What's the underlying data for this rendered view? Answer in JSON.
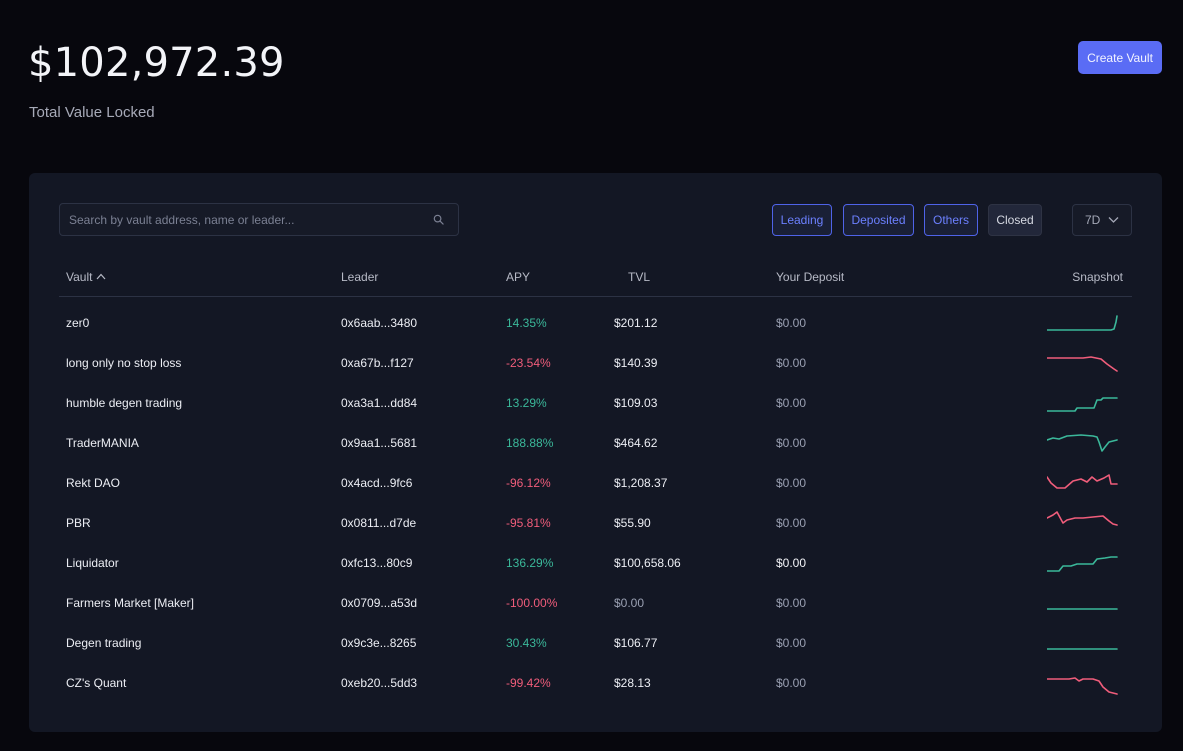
{
  "header": {
    "total_value": "$102,972.39",
    "total_label": "Total Value Locked",
    "create_button": "Create Vault"
  },
  "colors": {
    "accent": "#5a6cf5",
    "positive": "#3bb89a",
    "negative": "#f05d7b",
    "panel": "#131724",
    "background": "#07070d"
  },
  "search": {
    "placeholder": "Search by vault address, name or leader...",
    "value": "",
    "icon": "search-icon"
  },
  "filters": [
    {
      "label": "Leading",
      "active": true
    },
    {
      "label": "Deposited",
      "active": true
    },
    {
      "label": "Others",
      "active": true
    },
    {
      "label": "Closed",
      "active": false
    }
  ],
  "period": {
    "selected": "7D",
    "icon": "chevron-down-icon"
  },
  "columns": {
    "vault": "Vault",
    "leader": "Leader",
    "apy": "APY",
    "tvl": "TVL",
    "deposit": "Your Deposit",
    "snapshot": "Snapshot",
    "sort_icon": "sort-ascending-icon"
  },
  "rows": [
    {
      "name": "zer0",
      "leader": "0x6aab...3480",
      "apy": "14.35%",
      "tvl": "$201.12",
      "deposit": "$0.00",
      "trend": "up"
    },
    {
      "name": "long only no stop loss",
      "leader": "0xa67b...f127",
      "apy": "-23.54%",
      "tvl": "$140.39",
      "deposit": "$0.00",
      "trend": "down"
    },
    {
      "name": "humble degen trading",
      "leader": "0xa3a1...dd84",
      "apy": "13.29%",
      "tvl": "$109.03",
      "deposit": "$0.00",
      "trend": "up"
    },
    {
      "name": "TraderMANIA",
      "leader": "0x9aa1...5681",
      "apy": "188.88%",
      "tvl": "$464.62",
      "deposit": "$0.00",
      "trend": "up"
    },
    {
      "name": "Rekt DAO",
      "leader": "0x4acd...9fc6",
      "apy": "-96.12%",
      "tvl": "$1,208.37",
      "deposit": "$0.00",
      "trend": "down"
    },
    {
      "name": "PBR",
      "leader": "0x0811...d7de",
      "apy": "-95.81%",
      "tvl": "$55.90",
      "deposit": "$0.00",
      "trend": "down"
    },
    {
      "name": "Liquidator",
      "leader": "0xfc13...80c9",
      "apy": "136.29%",
      "tvl": "$100,658.06",
      "deposit": "$0.00",
      "trend": "up"
    },
    {
      "name": "Farmers Market [Maker]",
      "leader": "0x0709...a53d",
      "apy": "-100.00%",
      "tvl": "$0.00",
      "deposit": "$0.00",
      "trend": "flat"
    },
    {
      "name": "Degen trading",
      "leader": "0x9c3e...8265",
      "apy": "30.43%",
      "tvl": "$106.77",
      "deposit": "$0.00",
      "trend": "flat"
    },
    {
      "name": "CZ's Quant",
      "leader": "0xeb20...5dd3",
      "apy": "-99.42%",
      "tvl": "$28.13",
      "deposit": "$0.00",
      "trend": "down"
    }
  ]
}
